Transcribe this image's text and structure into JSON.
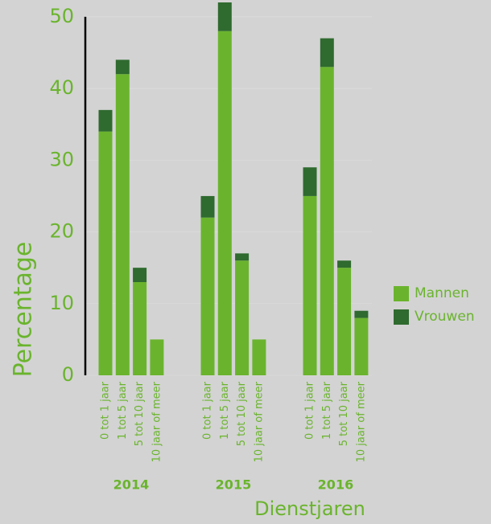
{
  "chart_data": {
    "type": "stacked_bar",
    "y_label": "Percentage",
    "x_label": "Dienstjaren",
    "groups": [
      "2014",
      "2015",
      "2016"
    ],
    "categories": [
      "0 tot 1 jaar",
      "1 tot 5 jaar",
      "5 tot 10 jaar",
      "10 jaar of meer",
      "0 tot 1 jaar",
      "1 tot 5 jaar",
      "5 tot 10 jaar",
      "10 jaar of meer",
      "0 tot 1 jaar",
      "1 tot 5 jaar",
      "5 tot 10 jaar",
      "10 jaar of meer"
    ],
    "series": [
      {
        "name": "Mannen",
        "color": "#6ab42d",
        "values": [
          34,
          42,
          13,
          5,
          22,
          48,
          16,
          5,
          25,
          43,
          15,
          8
        ]
      },
      {
        "name": "Vrouwen",
        "color": "#2f6a2f",
        "values": [
          3,
          2,
          2,
          0,
          3,
          4,
          1,
          0,
          4,
          4,
          1,
          1
        ]
      }
    ],
    "ylim": [
      0,
      52
    ],
    "yticks": [
      0,
      10,
      20,
      30,
      40,
      50
    ],
    "grid": true,
    "legend": "right"
  }
}
